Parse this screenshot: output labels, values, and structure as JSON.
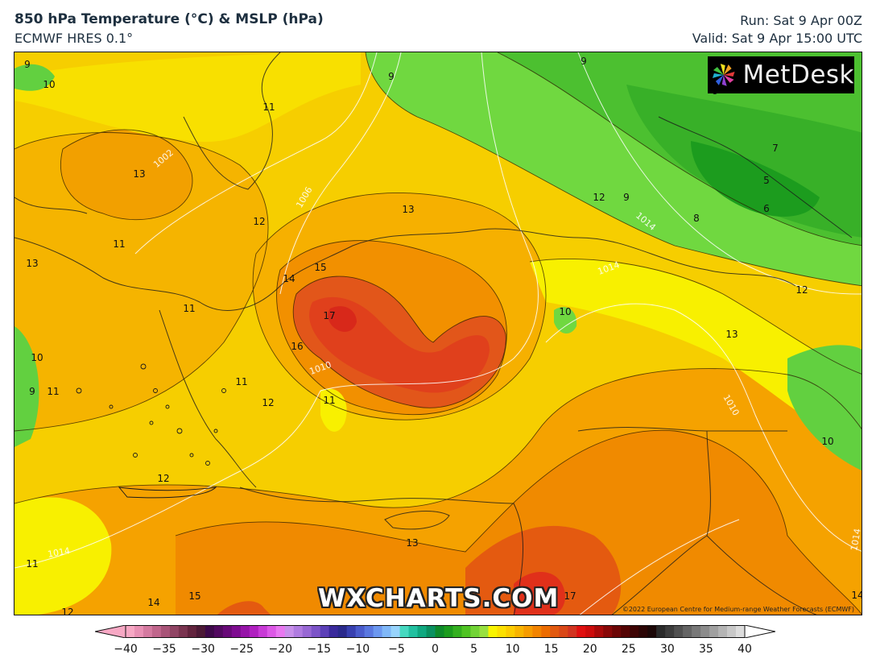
{
  "header": {
    "title": "850 hPa Temperature (°C) & MSLP (hPa)",
    "model": "ECMWF HRES 0.1°",
    "run": "Run: Sat 9 Apr 00Z",
    "valid": "Valid: Sat 9 Apr 15:00 UTC"
  },
  "logo": {
    "text": "MetDesk",
    "icon": "metdesk-pinwheel-icon"
  },
  "watermark": "WXCHARTS.COM",
  "copyright": "©2022 European Centre for Medium-range Weather Forecasts (ECMWF)",
  "contour_labels": [
    "9",
    "10",
    "9",
    "11",
    "13",
    "12",
    "11",
    "13",
    "11",
    "10",
    "9",
    "11",
    "12",
    "11",
    "12",
    "13",
    "14",
    "15",
    "17",
    "16",
    "11",
    "12",
    "10",
    "13",
    "12",
    "10",
    "9",
    "8",
    "7",
    "5",
    "6",
    "8",
    "9",
    "13",
    "11",
    "14",
    "15",
    "17",
    "14",
    "12",
    "10"
  ],
  "pressure_labels": [
    "1002",
    "1006",
    "1010",
    "1014",
    "1014",
    "1014",
    "1010",
    "1014"
  ],
  "colorbar": {
    "ticks": [
      "−40",
      "−35",
      "−30",
      "−25",
      "−20",
      "−15",
      "−10",
      "−5",
      "0",
      "5",
      "10",
      "15",
      "20",
      "25",
      "30",
      "35",
      "40"
    ],
    "colors": [
      "#f7a8c4",
      "#e890b4",
      "#d47aa0",
      "#c0668c",
      "#a85478",
      "#904464",
      "#7a3450",
      "#62243e",
      "#4c1a36",
      "#3e0a4a",
      "#520a60",
      "#680a78",
      "#7e0c90",
      "#9614a8",
      "#b020c0",
      "#c83ad6",
      "#dc58e6",
      "#e878f0",
      "#c890ea",
      "#b07ce0",
      "#9868d4",
      "#7c54c8",
      "#5c40b8",
      "#3a2a9c",
      "#2a2a8c",
      "#3840b0",
      "#4a5ccc",
      "#5a78e0",
      "#6c98f0",
      "#80b8f8",
      "#98d4fc",
      "#46d8c0",
      "#22c0a0",
      "#10a880",
      "#0a9060",
      "#0e8a2a",
      "#1c9c1e",
      "#34b020",
      "#50c424",
      "#72d436",
      "#98e040",
      "#f8f400",
      "#fce000",
      "#fccc00",
      "#f8b400",
      "#f69c00",
      "#f28400",
      "#ec6c00",
      "#e25a10",
      "#da4818",
      "#d23420",
      "#e01010",
      "#cc0c0c",
      "#a80a0a",
      "#880808",
      "#6c0606",
      "#540404",
      "#3e0404",
      "#2c0606",
      "#1c0808",
      "#2a2a2a",
      "#3c3c3c",
      "#505050",
      "#646464",
      "#787878",
      "#8c8c8c",
      "#a0a0a0",
      "#b4b4b4",
      "#c8c8c8",
      "#dcdcdc"
    ]
  }
}
